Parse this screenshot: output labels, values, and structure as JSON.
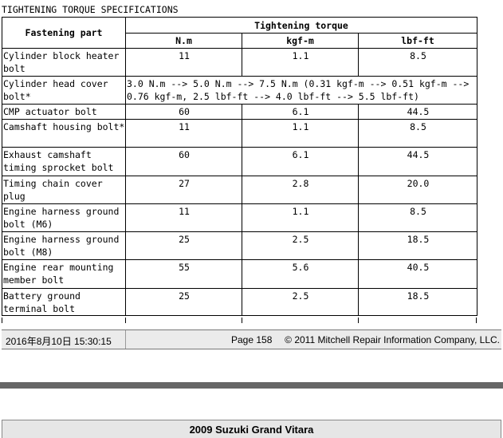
{
  "section_title": "TIGHTENING TORQUE SPECIFICATIONS",
  "table": {
    "header_part": "Fastening part",
    "header_torque": "Tightening torque",
    "unit_nm": "N.m",
    "unit_kgfm": "kgf-m",
    "unit_lbfft": "lbf-ft",
    "rows": [
      {
        "part": "Cylinder block heater bolt",
        "nm": "11",
        "kgfm": "1.1",
        "lbfft": "8.5"
      },
      {
        "part": "Cylinder head cover bolt*",
        "note": "3.0 N.m --> 5.0 N.m --> 7.5 N.m (0.31 kgf-m --> 0.51 kgf-m --> 0.76 kgf-m, 2.5 lbf-ft --> 4.0 lbf-ft --> 5.5 lbf-ft)"
      },
      {
        "part": "CMP actuator bolt",
        "nm": "60",
        "kgfm": "6.1",
        "lbfft": "44.5"
      },
      {
        "part": "Camshaft housing bolt*",
        "nm": "11",
        "kgfm": "1.1",
        "lbfft": "8.5"
      },
      {
        "part": "Exhaust camshaft timing sprocket bolt",
        "nm": "60",
        "kgfm": "6.1",
        "lbfft": "44.5"
      },
      {
        "part": "Timing chain cover plug",
        "nm": "27",
        "kgfm": "2.8",
        "lbfft": "20.0"
      },
      {
        "part": "Engine harness ground bolt (M6)",
        "nm": "11",
        "kgfm": "1.1",
        "lbfft": "8.5"
      },
      {
        "part": "Engine harness ground bolt (M8)",
        "nm": "25",
        "kgfm": "2.5",
        "lbfft": "18.5"
      },
      {
        "part": "Engine rear mounting member bolt",
        "nm": "55",
        "kgfm": "5.6",
        "lbfft": "40.5"
      },
      {
        "part": "Battery ground terminal bolt",
        "nm": "25",
        "kgfm": "2.5",
        "lbfft": "18.5"
      }
    ]
  },
  "footer": {
    "datetime": "2016年8月10日  15:30:15",
    "page": "Page 158",
    "copyright": "© 2011 Mitchell Repair Information Company, LLC."
  },
  "next_page_header": "2009 Suzuki Grand Vitara"
}
